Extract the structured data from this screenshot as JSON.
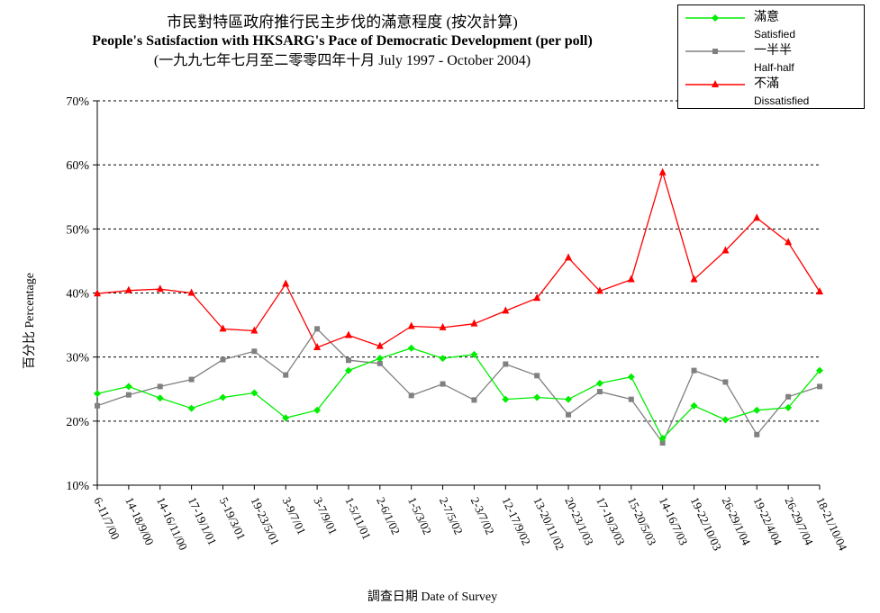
{
  "chart_data": {
    "type": "line",
    "title": "市民對特區政府推行民主步伐的滿意程度 (按次計算)",
    "subtitle": "People's Satisfaction with HKSARG's Pace of Democratic Development  (per poll)",
    "period": "(一九九七年七月至二零零四年十月 July 1997 - October 2004)",
    "xlabel": "調查日期 Date of Survey",
    "ylabel": "百分比 Percentage",
    "ylim": [
      10,
      70
    ],
    "yticks": [
      "10%",
      "20%",
      "30%",
      "40%",
      "50%",
      "60%",
      "70%"
    ],
    "grid": "horizontal dashed",
    "legend_position": "top-right",
    "categories": [
      "6-11/7/00",
      "14-18/9/00",
      "14-16/11/00",
      "17-19/1/01",
      "5-19/3/01",
      "19-23/5/01",
      "3-9/7/01",
      "3-7/9/01",
      "1-5/11/01",
      "2-6/1/02",
      "1-5/3/02",
      "2-7/5/02",
      "2-3/7/02",
      "12-17/9/02",
      "13-20/11/02",
      "20-23/1/03",
      "17-19/3/03",
      "15-20/5/03",
      "14-16/7/03",
      "19-22/10/03",
      "26-29/1/04",
      "19-22/4/04",
      "26-29/7/04",
      "18-21/10/04"
    ],
    "series": [
      {
        "name": "滿意",
        "name_en": "Satisfied",
        "color": "#00ee00",
        "marker": "diamond",
        "values": [
          24.3,
          25.4,
          23.6,
          22.0,
          23.7,
          24.4,
          20.5,
          21.7,
          27.9,
          29.8,
          31.4,
          29.8,
          30.4,
          23.4,
          23.7,
          23.4,
          25.9,
          26.9,
          17.3,
          22.4,
          20.2,
          21.7,
          22.1,
          27.9
        ]
      },
      {
        "name": "一半半",
        "name_en": "Half-half",
        "color": "#808080",
        "marker": "square",
        "values": [
          22.4,
          24.1,
          25.4,
          26.5,
          29.6,
          30.9,
          27.2,
          34.4,
          29.5,
          29.0,
          24.0,
          25.8,
          23.3,
          28.9,
          27.1,
          21.0,
          24.6,
          23.4,
          16.6,
          27.9,
          26.1,
          17.9,
          23.8,
          25.4
        ]
      },
      {
        "name": "不滿",
        "name_en": "Dissatisfied",
        "color": "#ff0000",
        "marker": "triangle",
        "values": [
          39.9,
          40.4,
          40.6,
          40.0,
          34.4,
          34.1,
          41.4,
          31.5,
          33.4,
          31.7,
          34.8,
          34.6,
          35.2,
          37.2,
          39.2,
          45.5,
          40.3,
          42.1,
          58.8,
          42.1,
          46.6,
          51.7,
          47.9,
          40.2
        ]
      }
    ]
  }
}
